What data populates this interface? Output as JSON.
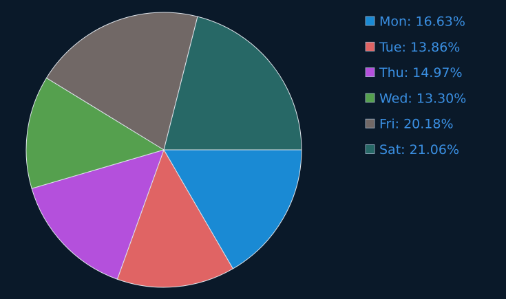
{
  "chart_data": {
    "type": "pie",
    "labels": [
      "Mon: 16.63%",
      "Tue: 13.86%",
      "Thu: 14.97%",
      "Wed: 13.30%",
      "Fri: 20.18%",
      "Sat: 21.06%"
    ],
    "values": [
      16.63,
      13.86,
      14.97,
      13.3,
      20.18,
      21.06
    ],
    "colors": [
      "#1a8ad4",
      "#e06464",
      "#b450dc",
      "#55a04e",
      "#716866",
      "#276866"
    ],
    "legend": "upper right"
  }
}
